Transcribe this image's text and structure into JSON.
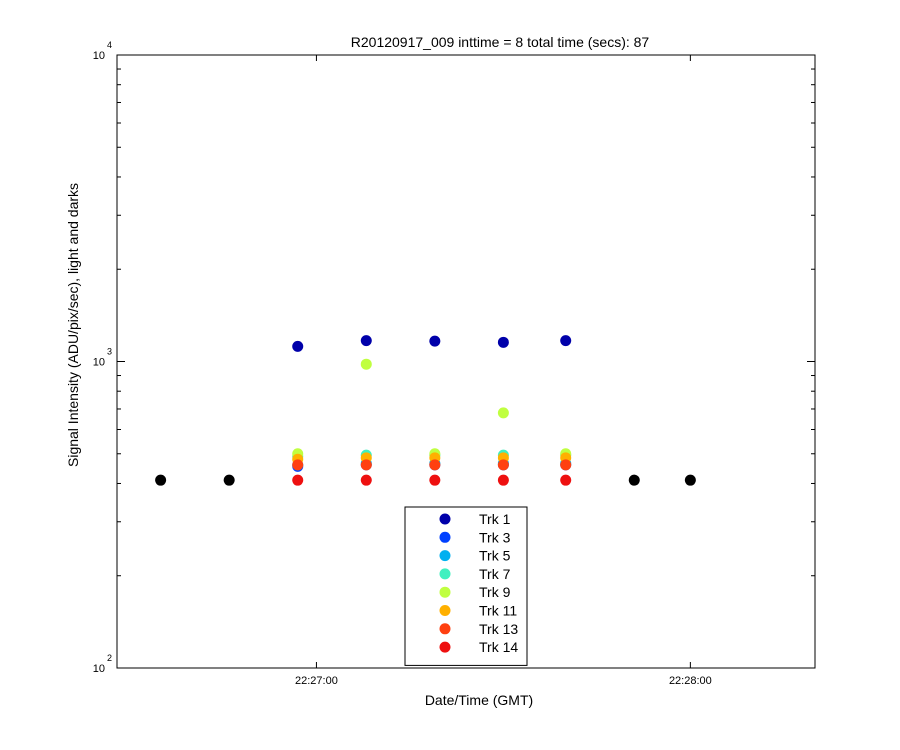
{
  "chart_data": {
    "type": "scatter",
    "title": "R20120917_009 inttime = 8 total time (secs): 87",
    "xlabel": "Date/Time (GMT)",
    "ylabel": "Signal Intensity (ADU/pix/sec), light and darks",
    "x_axis": {
      "type": "time",
      "range": [
        "22:26:28",
        "22:28:20"
      ],
      "ticks": [
        "22:27:00",
        "22:28:00"
      ]
    },
    "y_axis": {
      "scale": "log",
      "range": [
        100,
        10000
      ],
      "ticks": [
        {
          "value": 100,
          "base": "10",
          "exponent": "2"
        },
        {
          "value": 1000,
          "base": "10",
          "exponent": "3"
        },
        {
          "value": 10000,
          "base": "10",
          "exponent": "4"
        }
      ]
    },
    "grid": false,
    "legend_position": "bottom-center",
    "series": [
      {
        "name": "Trk 1",
        "color": "#0000aa",
        "points": [
          [
            "22:26:57",
            1120
          ],
          [
            "22:27:08",
            1170
          ],
          [
            "22:27:19",
            1165
          ],
          [
            "22:27:30",
            1155
          ],
          [
            "22:27:40",
            1170
          ]
        ]
      },
      {
        "name": "Trk 3",
        "color": "#0040ff",
        "points": [
          [
            "22:26:57",
            455
          ],
          [
            "22:27:08",
            460
          ],
          [
            "22:27:19",
            460
          ],
          [
            "22:27:30",
            460
          ],
          [
            "22:27:40",
            460
          ]
        ]
      },
      {
        "name": "Trk 5",
        "color": "#00b0f0",
        "points": [
          [
            "22:26:57",
            460
          ],
          [
            "22:27:08",
            465
          ],
          [
            "22:27:19",
            465
          ],
          [
            "22:27:30",
            465
          ],
          [
            "22:27:40",
            465
          ]
        ]
      },
      {
        "name": "Trk 7",
        "color": "#40f0c0",
        "points": [
          [
            "22:26:57",
            490
          ],
          [
            "22:27:08",
            495
          ],
          [
            "22:27:19",
            495
          ],
          [
            "22:27:30",
            495
          ],
          [
            "22:27:40",
            495
          ]
        ]
      },
      {
        "name": "Trk 9",
        "color": "#c0ff40",
        "points": [
          [
            "22:26:57",
            500
          ],
          [
            "22:27:08",
            980
          ],
          [
            "22:27:19",
            500
          ],
          [
            "22:27:30",
            680
          ],
          [
            "22:27:40",
            500
          ]
        ]
      },
      {
        "name": "Trk 11",
        "color": "#ffb000",
        "points": [
          [
            "22:26:57",
            480
          ],
          [
            "22:27:08",
            485
          ],
          [
            "22:27:19",
            485
          ],
          [
            "22:27:30",
            485
          ],
          [
            "22:27:40",
            485
          ]
        ]
      },
      {
        "name": "Trk 13",
        "color": "#ff4010",
        "points": [
          [
            "22:26:57",
            460
          ],
          [
            "22:27:08",
            460
          ],
          [
            "22:27:19",
            460
          ],
          [
            "22:27:30",
            460
          ],
          [
            "22:27:40",
            460
          ]
        ]
      },
      {
        "name": "Trk 14",
        "color": "#ee1010",
        "points": [
          [
            "22:26:57",
            410
          ],
          [
            "22:27:08",
            410
          ],
          [
            "22:27:19",
            410
          ],
          [
            "22:27:30",
            410
          ],
          [
            "22:27:40",
            410
          ]
        ]
      },
      {
        "color": "#000000",
        "points": [
          [
            "22:26:35",
            410
          ],
          [
            "22:26:46",
            410
          ],
          [
            "22:27:51",
            410
          ],
          [
            "22:28:00",
            410
          ]
        ]
      }
    ]
  }
}
